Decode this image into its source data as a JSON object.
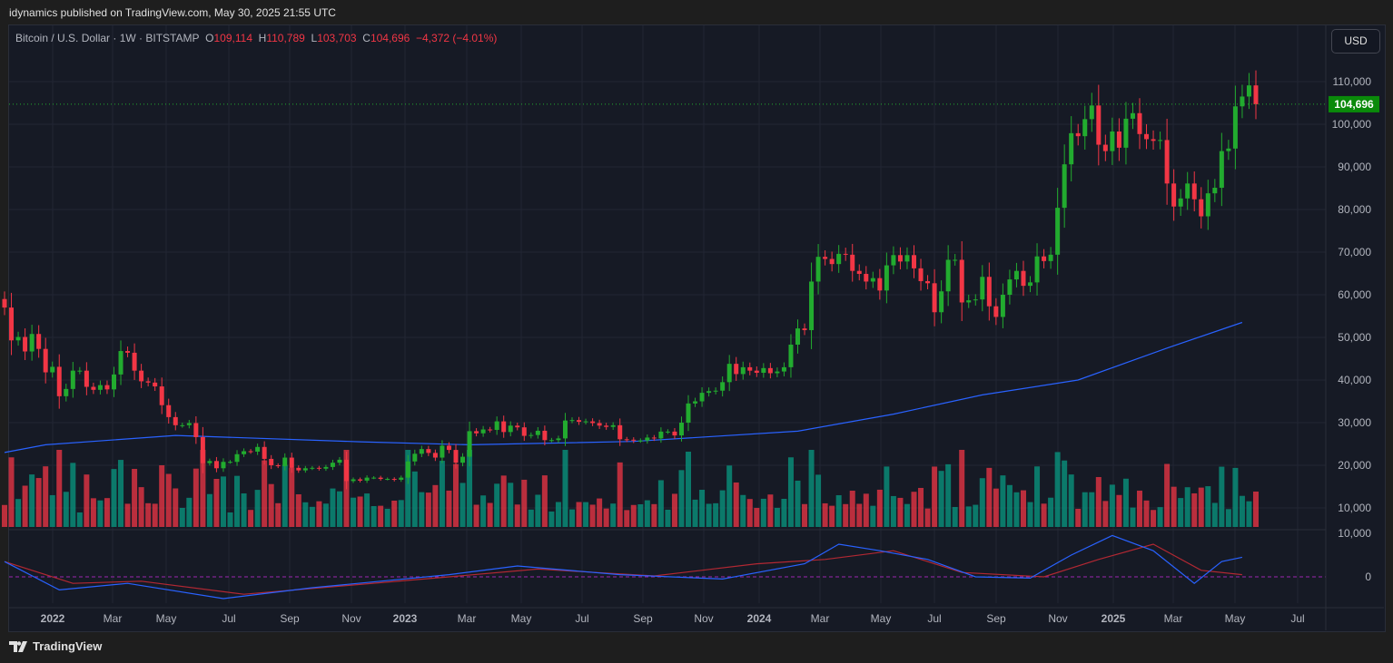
{
  "header": {
    "published": "idynamics published on TradingView.com, May 30, 2025 21:55 UTC"
  },
  "legend": {
    "symbol": "Bitcoin / U.S. Dollar · 1W · BITSTAMP",
    "o_label": "O",
    "o": "109,114",
    "h_label": "H",
    "h": "110,789",
    "l_label": "L",
    "l": "103,703",
    "c_label": "C",
    "c": "104,696",
    "change": "−4,372 (−4.01%)"
  },
  "currency_button": "USD",
  "footer": {
    "brand": "TradingView"
  },
  "colors": {
    "up": "#089981",
    "down": "#f23645",
    "candle_up": "#22ab2f",
    "candle_down": "#f23645",
    "ma": "#2962ff",
    "osc_fast": "#2962ff",
    "osc_slow": "#b22833",
    "last_price_bg": "#0a8a0a"
  },
  "chart_data": {
    "type": "candlestick",
    "title": "Bitcoin / U.S. Dollar · 1W · BITSTAMP",
    "interval": "1W",
    "start_week": "2021-11-22",
    "ylim": [
      0,
      118000
    ],
    "y_ticks": [
      "110,000",
      "100,000",
      "90,000",
      "80,000",
      "70,000",
      "60,000",
      "50,000",
      "40,000",
      "30,000",
      "20,000",
      "10,000"
    ],
    "last_price": "104,696",
    "x_ticks": [
      "2022",
      "Mar",
      "May",
      "Jul",
      "Sep",
      "Nov",
      "2023",
      "Mar",
      "May",
      "Jul",
      "Sep",
      "Nov",
      "2024",
      "Mar",
      "May",
      "Jul",
      "Sep",
      "Nov",
      "2025",
      "Mar",
      "May",
      "Jul"
    ],
    "closes": [
      57000,
      49300,
      50100,
      46700,
      50800,
      47300,
      41800,
      43100,
      36200,
      37900,
      42200,
      42200,
      38400,
      37700,
      38800,
      37800,
      41300,
      46800,
      46400,
      42200,
      39700,
      39400,
      38500,
      34100,
      31300,
      29400,
      29400,
      29900,
      26600,
      20500,
      21000,
      19300,
      20800,
      20800,
      22600,
      23300,
      23200,
      24300,
      21500,
      20000,
      19800,
      21800,
      19400,
      18800,
      19300,
      19400,
      19200,
      19600,
      20600,
      21300,
      16300,
      16700,
      16400,
      17100,
      17100,
      16800,
      16800,
      16600,
      17100,
      20900,
      22700,
      23800,
      22900,
      21800,
      24600,
      23600,
      20600,
      22000,
      28000,
      27500,
      28400,
      28300,
      30300,
      27800,
      29300,
      28900,
      26900,
      27100,
      28100,
      25900,
      25900,
      26300,
      30500,
      30600,
      30200,
      30300,
      29900,
      29300,
      29000,
      29400,
      26100,
      26000,
      25800,
      25800,
      26500,
      26300,
      27900,
      27900,
      27000,
      30000,
      34500,
      35000,
      37000,
      37400,
      37500,
      39500,
      43800,
      41400,
      43000,
      42200,
      41700,
      42800,
      41600,
      42000,
      43000,
      48300,
      52100,
      51700,
      63100,
      68900,
      68400,
      67200,
      69600,
      69400,
      65600,
      64900,
      63100,
      63900,
      61000,
      66900,
      69300,
      67800,
      69300,
      66200,
      63200,
      62700,
      55900,
      60800,
      68200,
      68200,
      58200,
      58700,
      58900,
      64200,
      57300,
      54800,
      60000,
      63600,
      65600,
      62100,
      62900,
      69000,
      67900,
      69400,
      80400,
      90600,
      97900,
      97200,
      101200,
      104400,
      95200,
      93700,
      98300,
      94500,
      101300,
      102600,
      97700,
      96500,
      96100,
      96300,
      86100,
      80700,
      82600,
      86100,
      82400,
      78400,
      83800,
      85100,
      93700,
      94300,
      104200,
      106500,
      109114,
      104696
    ],
    "ma_200w": {
      "week": [
        0,
        6,
        25,
        52,
        68,
        92,
        116,
        130,
        143,
        157,
        170,
        181
      ],
      "value": [
        23000,
        24800,
        27000,
        25500,
        24800,
        25600,
        28000,
        32000,
        36500,
        40000,
        47500,
        53500
      ]
    },
    "volume_axis": "10,000",
    "oscillator": {
      "y_ticks": [
        "10,000",
        "0"
      ],
      "fast": {
        "week": [
          0,
          8,
          18,
          32,
          45,
          55,
          65,
          75,
          90,
          105,
          117,
          122,
          128,
          135,
          142,
          150,
          156,
          162,
          168,
          174,
          178,
          181
        ],
        "value": [
          3500,
          -3000,
          -1500,
          -5000,
          -2500,
          -1000,
          500,
          2500,
          500,
          -500,
          3000,
          7500,
          6000,
          4000,
          0,
          -300,
          5000,
          9500,
          6000,
          -1500,
          3500,
          4500
        ]
      },
      "slow": {
        "week": [
          0,
          10,
          20,
          35,
          50,
          65,
          78,
          95,
          110,
          120,
          130,
          140,
          152,
          160,
          168,
          175,
          181
        ],
        "value": [
          3500,
          -1500,
          -1000,
          -4000,
          -2000,
          0,
          1800,
          200,
          3000,
          4000,
          6000,
          1000,
          0,
          4000,
          7500,
          1500,
          500
        ]
      }
    }
  }
}
